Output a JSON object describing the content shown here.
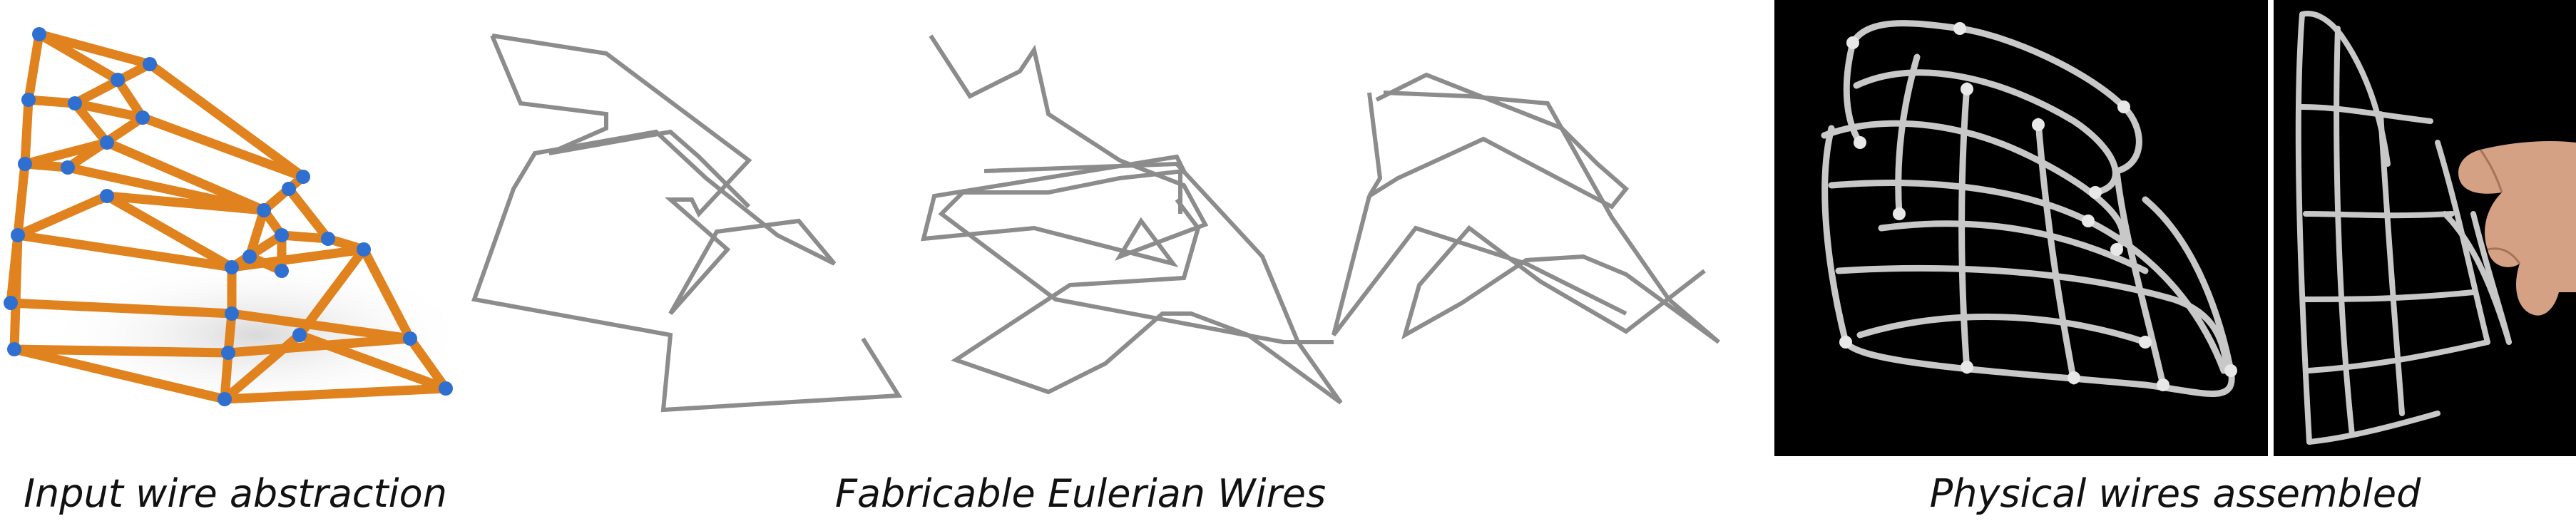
{
  "figure": {
    "captions": {
      "input": "Input wire abstraction",
      "eulerian": "Fabricable Eulerian Wires",
      "physical": "Physical wires assembled"
    },
    "colors": {
      "wire_orange": "#e0821e",
      "node_blue": "#2e6fd0",
      "metal_wire": "#8c8c8c",
      "photo_background": "#000000"
    }
  }
}
